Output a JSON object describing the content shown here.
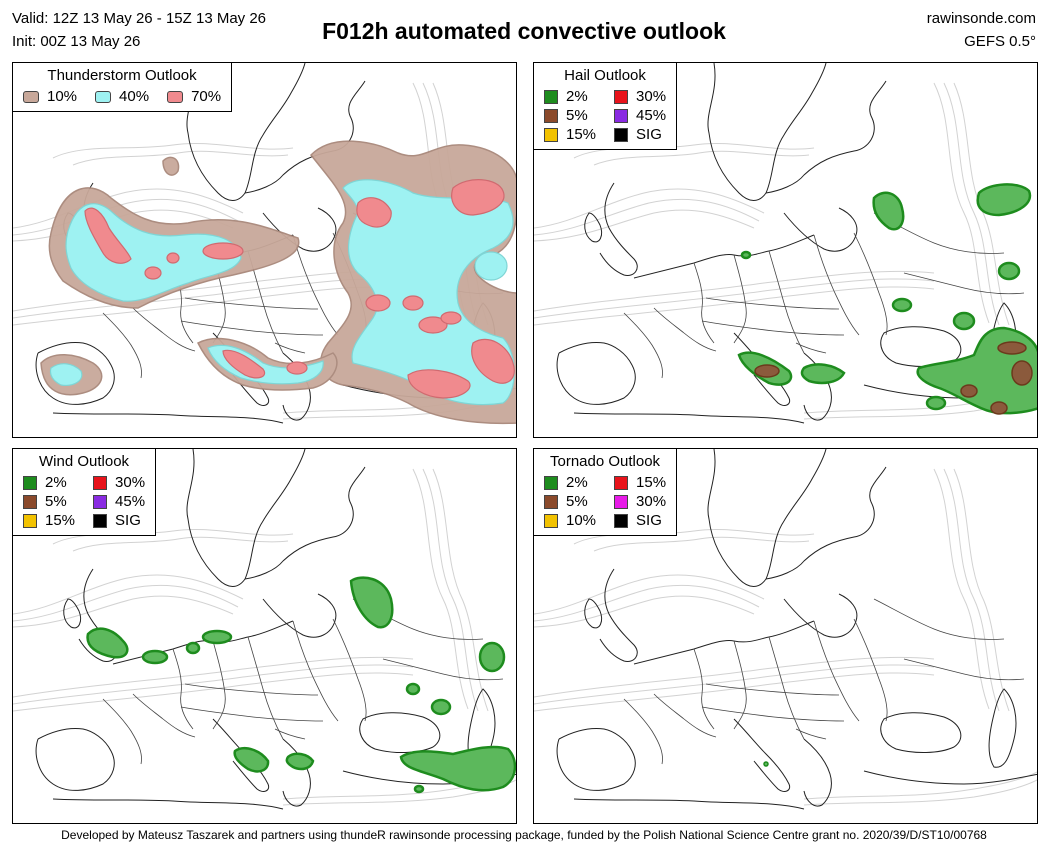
{
  "header": {
    "valid": "Valid: 12Z 13 May 26 - 15Z 13 May 26",
    "init": "Init: 00Z 13 May 26",
    "title": "F012h automated convective outlook",
    "site": "rawinsonde.com",
    "model": "GEFS 0.5°"
  },
  "footer": "Developed by Mateusz Taszarek and partners using thundeR rawinsonde processing package, funded by the Polish National Science Centre grant no. 2020/39/D/ST10/00768",
  "panels": [
    {
      "title": "Thunderstorm Outlook",
      "legend": [
        {
          "label": "10%",
          "color": "#c8a89a"
        },
        {
          "label": "40%",
          "color": "#9ef2f2"
        },
        {
          "label": "70%",
          "color": "#f08a8e"
        }
      ]
    },
    {
      "title": "Hail Outlook",
      "legend": [
        {
          "label": "2%",
          "color": "#1e8c1e"
        },
        {
          "label": "30%",
          "color": "#e8131b"
        },
        {
          "label": "5%",
          "color": "#8b4a2b"
        },
        {
          "label": "45%",
          "color": "#8a2be2"
        },
        {
          "label": "15%",
          "color": "#f2c200"
        },
        {
          "label": "SIG",
          "color": "#000000"
        }
      ]
    },
    {
      "title": "Wind Outlook",
      "legend": [
        {
          "label": "2%",
          "color": "#1e8c1e"
        },
        {
          "label": "30%",
          "color": "#e8131b"
        },
        {
          "label": "5%",
          "color": "#8b4a2b"
        },
        {
          "label": "45%",
          "color": "#8a2be2"
        },
        {
          "label": "15%",
          "color": "#f2c200"
        },
        {
          "label": "SIG",
          "color": "#000000"
        }
      ]
    },
    {
      "title": "Tornado Outlook",
      "legend": [
        {
          "label": "2%",
          "color": "#1e8c1e"
        },
        {
          "label": "15%",
          "color": "#e8131b"
        },
        {
          "label": "5%",
          "color": "#8b4a2b"
        },
        {
          "label": "30%",
          "color": "#e81be8"
        },
        {
          "label": "10%",
          "color": "#f2c200"
        },
        {
          "label": "SIG",
          "color": "#000000"
        }
      ]
    }
  ]
}
